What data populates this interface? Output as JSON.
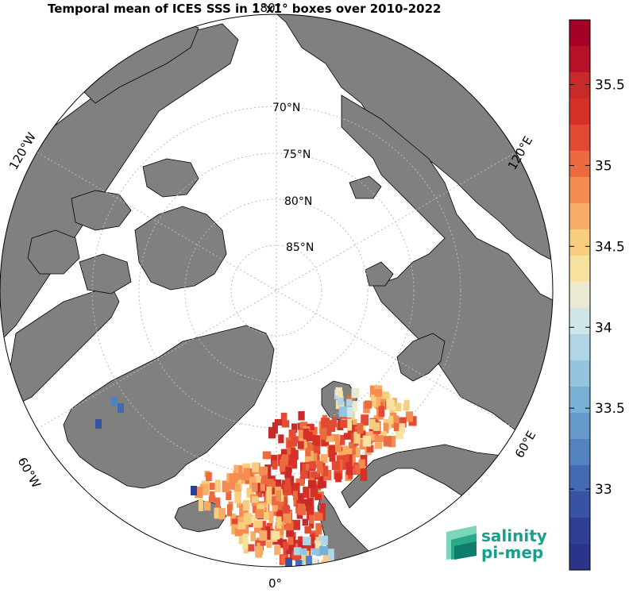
{
  "title": "Temporal mean of ICES SSS in 1°x1° boxes over 2010-2022",
  "map": {
    "projection": "north-polar-stereographic",
    "land_color": "#808080",
    "ocean_color": "#ffffff",
    "lat_labels": [
      "70°N",
      "75°N",
      "80°N",
      "85°N"
    ],
    "lon_labels": {
      "top": "180°",
      "right_upper": "120°E",
      "right_lower": "60°E",
      "bottom": "0°",
      "left_lower": "60°W",
      "left_upper": "120°W"
    }
  },
  "colorbar": {
    "vmin": 32.5,
    "vmax": 35.9,
    "ticks": [
      "35.5",
      "35",
      "34.5",
      "34",
      "33.5",
      "33"
    ],
    "colors": [
      "#a50026",
      "#b71227",
      "#c72a28",
      "#d73027",
      "#e34a33",
      "#ec6a3f",
      "#f48d52",
      "#f7ad66",
      "#f9cd7e",
      "#f7e2a0",
      "#ece9d2",
      "#cfe6e8",
      "#b0d6e6",
      "#95c4df",
      "#7aafd6",
      "#6499c9",
      "#5282bf",
      "#436ab3",
      "#3853a4",
      "#2f3f96",
      "#2b3488"
    ]
  },
  "logo": {
    "line1": "salinity",
    "line2": "pi-mep",
    "color": "#1a9e8c"
  }
}
